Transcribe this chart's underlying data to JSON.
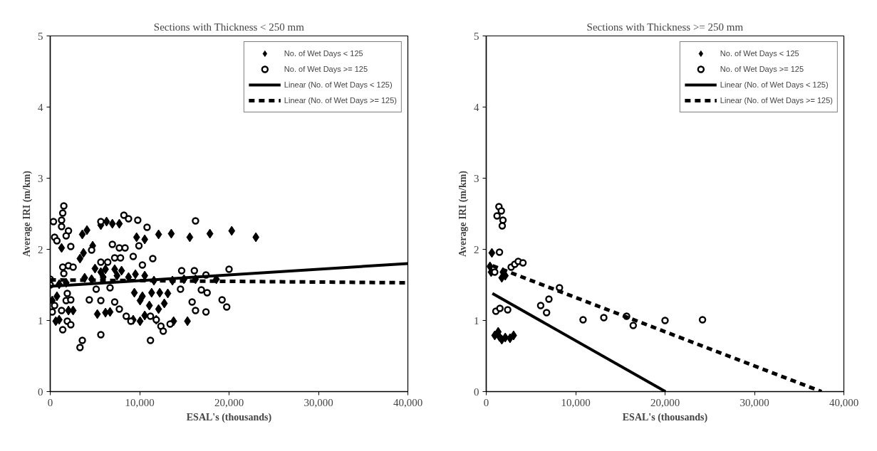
{
  "chart_data": [
    {
      "type": "scatter",
      "title": "Sections with Thickness < 250 mm",
      "xlabel": "ESAL's (thousands)",
      "ylabel": "Average IRI (m/km)",
      "xlim": [
        0,
        40000
      ],
      "ylim": [
        0,
        5
      ],
      "xticks": [
        0,
        {
          "value": 10000,
          "label": "10,000"
        },
        {
          "value": 20000,
          "label": "20,000"
        },
        {
          "value": 30000,
          "label": "30,000"
        },
        {
          "value": 40000,
          "label": "40,000"
        }
      ],
      "yticks": [
        0,
        1,
        2,
        3,
        4,
        5
      ],
      "grid": false,
      "legend": "top right",
      "series": [
        {
          "name": "No. of Wet Days < 125",
          "marker": "diamond",
          "color": "#000000",
          "x": [
            3590,
            4110,
            5660,
            6300,
            6950,
            7730,
            9660,
            10570,
            12120,
            13540,
            15610,
            17860,
            20300,
            23000,
            1270,
            3330,
            3720,
            4750,
            5010,
            5660,
            6180,
            7210,
            7980,
            3850,
            4630,
            5920,
            7470,
            8760,
            9530,
            10570,
            11600,
            13670,
            14960,
            16250,
            18580,
            9410,
            10310,
            11340,
            12250,
            13150,
            10050,
            11090,
            12120,
            12760,
            5270,
            6180,
            6690,
            9280,
            10050,
            10570,
            11860,
            13800,
            15350,
            620,
            1000,
            2040,
            2560,
            750,
            230,
            1000,
            1780
          ],
          "values": [
            2.21,
            2.27,
            2.34,
            2.39,
            2.36,
            2.36,
            2.17,
            2.14,
            2.21,
            2.22,
            2.17,
            2.22,
            2.26,
            2.17,
            2.02,
            1.87,
            1.95,
            2.05,
            1.73,
            1.68,
            1.72,
            1.72,
            1.7,
            1.6,
            1.58,
            1.61,
            1.63,
            1.61,
            1.65,
            1.63,
            1.56,
            1.56,
            1.58,
            1.58,
            1.58,
            1.39,
            1.34,
            1.39,
            1.39,
            1.38,
            1.28,
            1.21,
            1.16,
            1.24,
            1.09,
            1.11,
            1.12,
            1.01,
            0.99,
            1.07,
            1.01,
            0.99,
            0.99,
            0.99,
            1.01,
            1.14,
            1.14,
            1.34,
            1.28,
            1.51,
            1.53
          ]
        },
        {
          "name": "No. of Wet Days >= 125",
          "marker": "circle",
          "color": "#000000",
          "x": [
            1520,
            1400,
            1270,
            360,
            1270,
            2040,
            1780,
            490,
            750,
            2300,
            5660,
            8240,
            8760,
            9790,
            10830,
            16250,
            6950,
            7730,
            8370,
            9920,
            9280,
            11470,
            10310,
            7210,
            7860,
            4630,
            5660,
            6430,
            1400,
            2040,
            2560,
            1520,
            0,
            0,
            5140,
            6690,
            14700,
            16120,
            17420,
            20000,
            14570,
            16900,
            17550,
            15870,
            16250,
            17420,
            19220,
            19740,
            1910,
            1780,
            2300,
            490,
            1270,
            230,
            1910,
            2300,
            1400,
            4370,
            5660,
            7210,
            7730,
            8500,
            9020,
            11210,
            11860,
            12380,
            12640,
            13410,
            3590,
            3330,
            5660,
            11210
          ],
          "values": [
            2.61,
            2.51,
            2.41,
            2.39,
            2.32,
            2.26,
            2.19,
            2.17,
            2.12,
            2.04,
            2.39,
            2.48,
            2.43,
            2.41,
            2.31,
            2.4,
            2.07,
            2.02,
            2.02,
            2.05,
            1.9,
            1.87,
            1.78,
            1.88,
            1.88,
            1.99,
            1.82,
            1.82,
            1.75,
            1.77,
            1.75,
            1.66,
            1.58,
            1.5,
            1.44,
            1.46,
            1.7,
            1.7,
            1.64,
            1.72,
            1.44,
            1.43,
            1.39,
            1.26,
            1.14,
            1.12,
            1.29,
            1.19,
            1.38,
            1.28,
            1.29,
            1.21,
            1.14,
            1.12,
            0.99,
            0.94,
            0.87,
            1.29,
            1.28,
            1.26,
            1.16,
            1.06,
            0.99,
            1.06,
            1.01,
            0.92,
            0.85,
            0.95,
            0.72,
            0.62,
            0.8,
            0.72
          ]
        },
        {
          "name": "Linear (No. of Wet Days < 125)",
          "type": "line",
          "line_style": "solid",
          "color": "#000000",
          "x": [
            0,
            40000
          ],
          "values": [
            1.48,
            1.8
          ]
        },
        {
          "name": "Linear (No. of Wet Days >= 125)",
          "type": "line",
          "line_style": "dashed",
          "color": "#000000",
          "x": [
            0,
            40000
          ],
          "values": [
            1.57,
            1.53
          ]
        }
      ]
    },
    {
      "type": "scatter",
      "title": "Sections with Thickness >= 250 mm",
      "xlabel": "ESAL's (thousands)",
      "ylabel": "Average IRI (m/km)",
      "xlim": [
        0,
        40000
      ],
      "ylim": [
        0,
        5
      ],
      "xticks": [
        0,
        {
          "value": 10000,
          "label": "10,000"
        },
        {
          "value": 20000,
          "label": "20,000"
        },
        {
          "value": 30000,
          "label": "30,000"
        },
        {
          "value": 40000,
          "label": "40,000"
        }
      ],
      "yticks": [
        0,
        1,
        2,
        3,
        4,
        5
      ],
      "grid": false,
      "legend": "top right",
      "series": [
        {
          "name": "No. of Wet Days < 125",
          "marker": "diamond",
          "color": "#000000",
          "x": [
            630,
            420,
            550,
            1870,
            2130,
            1740,
            950,
            1340,
            1740,
            2130,
            2660,
            3060,
            1480
          ],
          "values": [
            1.95,
            1.76,
            1.68,
            1.68,
            1.63,
            1.6,
            0.79,
            0.84,
            0.73,
            0.76,
            0.75,
            0.79,
            0.77
          ]
        },
        {
          "name": "No. of Wet Days >= 125",
          "marker": "circle",
          "color": "#000000",
          "x": [
            1420,
            1690,
            1210,
            1870,
            1790,
            1480,
            950,
            2790,
            3190,
            3580,
            4110,
            8190,
            7010,
            6090,
            6750,
            10830,
            13150,
            15700,
            16440,
            20000,
            24190,
            1080,
            1530,
            2400
          ],
          "values": [
            2.6,
            2.54,
            2.47,
            2.41,
            2.33,
            1.96,
            1.68,
            1.75,
            1.79,
            1.83,
            1.81,
            1.46,
            1.3,
            1.21,
            1.11,
            1.01,
            1.04,
            1.06,
            0.93,
            1.0,
            1.01,
            1.13,
            1.17,
            1.15
          ]
        },
        {
          "name": "Linear (No. of Wet Days < 125)",
          "type": "line",
          "line_style": "solid",
          "color": "#000000",
          "x": [
            690,
            20050
          ],
          "values": [
            1.38,
            0
          ]
        },
        {
          "name": "Linear (No. of Wet Days >= 125)",
          "type": "line",
          "line_style": "dashed",
          "color": "#000000",
          "x": [
            700,
            37500
          ],
          "values": [
            1.77,
            0
          ]
        }
      ]
    }
  ]
}
